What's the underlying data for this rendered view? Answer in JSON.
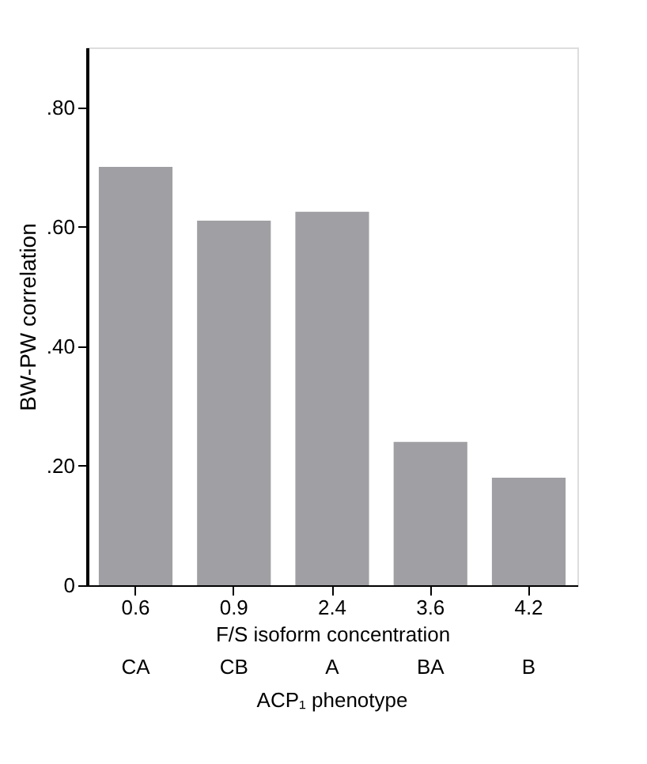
{
  "chart_data": {
    "type": "bar",
    "xlabel": "F/S isoform concentration",
    "ylabel": "BW-PW correlation",
    "categories": [
      "0.6",
      "0.9",
      "2.4",
      "3.6",
      "4.2"
    ],
    "values": [
      0.7,
      0.61,
      0.625,
      0.24,
      0.18
    ],
    "color": "#a0a0a4",
    "ylim": [
      0,
      0.9
    ],
    "yticks": [
      {
        "value": 0,
        "label": "0"
      },
      {
        "value": 0.2,
        "label": ".20"
      },
      {
        "value": 0.4,
        "label": ".40"
      },
      {
        "value": 0.6,
        "label": ".60"
      },
      {
        "value": 0.8,
        "label": ".80"
      }
    ],
    "grid": false,
    "annotations": [
      "CA",
      "CB",
      "A",
      "BA",
      "B",
      "ACP₁ phenotype"
    ]
  }
}
